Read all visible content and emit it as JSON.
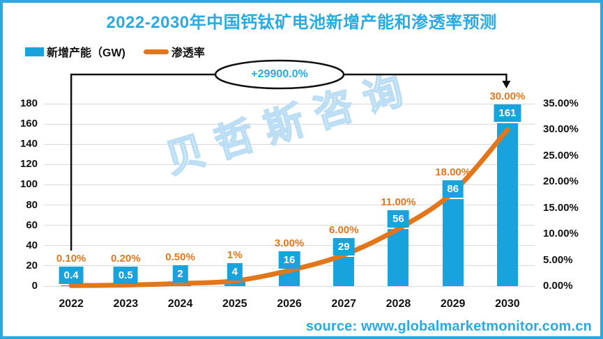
{
  "page": {
    "title": "2022-2030年中国钙钛矿电池新增产能和渗透率预测",
    "watermark": "贝哲斯咨询",
    "source": "source: www.globalmarketmonitor.com.cn",
    "border_color": "#2baae1",
    "title_color": "#29abe2"
  },
  "legend": {
    "items": [
      {
        "label": "新增产能（GW)",
        "marker": "bar-swatch",
        "color": "#18a3dd"
      },
      {
        "label": "渗透率",
        "marker": "line-swatch",
        "color": "#e2761b"
      }
    ]
  },
  "annotation": {
    "label": "+29900.0%",
    "text_color": "#29abe2",
    "from_category": "2022",
    "to_category": "2030"
  },
  "chart_data": {
    "type": "bar",
    "subtype": "combo-bar-line-dual-axis",
    "title": "2022-2030年中国钙钛矿电池新增产能和渗透率预测",
    "categories": [
      "2022",
      "2023",
      "2024",
      "2025",
      "2026",
      "2027",
      "2028",
      "2029",
      "2030"
    ],
    "series": [
      {
        "name": "新增产能（GW)",
        "type": "bar",
        "axis": "left",
        "color": "#18a3dd",
        "values": [
          0.4,
          0.5,
          2,
          4,
          16,
          29,
          56,
          86,
          161
        ],
        "labels": [
          "0.4",
          "0.5",
          "2",
          "4",
          "16",
          "29",
          "56",
          "86",
          "161"
        ]
      },
      {
        "name": "渗透率",
        "type": "line",
        "axis": "right",
        "color": "#e2761b",
        "values": [
          0.1,
          0.2,
          0.5,
          1,
          3,
          6,
          11,
          18,
          30
        ],
        "labels": [
          "0.10%",
          "0.20%",
          "0.50%",
          "1%",
          "3.00%",
          "6.00%",
          "11.00%",
          "18.00%",
          "30.00%"
        ]
      }
    ],
    "left_axis": {
      "min": 0,
      "max": 180,
      "step": 20,
      "ticks": [
        "0",
        "20",
        "40",
        "60",
        "80",
        "100",
        "120",
        "140",
        "160",
        "180"
      ]
    },
    "right_axis": {
      "min": 0,
      "max": 35,
      "step": 5,
      "ticks": [
        "0.00%",
        "5.00%",
        "10.00%",
        "15.00%",
        "20.00%",
        "25.00%",
        "30.00%",
        "35.00%"
      ]
    },
    "grid": true,
    "legend_position": "top-left",
    "grid_color": "#d9d9d9"
  }
}
